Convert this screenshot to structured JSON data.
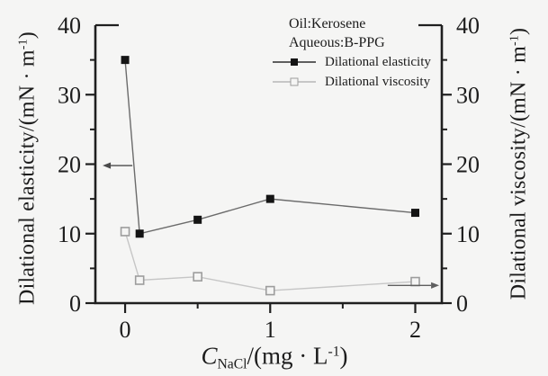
{
  "figure": {
    "background": "#f5f5f4",
    "conditions": {
      "line1": "Oil:Kerosene",
      "line2": "Aqueous:B-PPG"
    }
  },
  "labels": {
    "ylabel_left": {
      "text": "Dilational elasticity/(mN · m",
      "sup": "-1",
      "close": ")"
    },
    "ylabel_right": {
      "text": "Dilational viscosity/(mN · m",
      "sup": "-1",
      "close": ")"
    },
    "xlabel": {
      "var": "C",
      "sub": "NaCl",
      "mid": "/(mg · L",
      "sup": "-1",
      "close": ")"
    }
  },
  "chart_data": {
    "type": "line",
    "title": "",
    "x": [
      0,
      0.1,
      0.5,
      1,
      2
    ],
    "series": [
      {
        "name": "Dilational elasticity",
        "axis": "left",
        "values": [
          35,
          10,
          12,
          15,
          13
        ],
        "line_color": "#6b6b6b",
        "marker": "filled-square",
        "marker_color": "#141414"
      },
      {
        "name": "Dilational viscosity",
        "axis": "right",
        "values": [
          10.3,
          3.3,
          3.8,
          1.8,
          3.1
        ],
        "line_color": "#c6c6c6",
        "marker": "open-square",
        "marker_color": "#9d9d9d"
      }
    ],
    "xlabel": "C_NaCl/(mg · L^-1)",
    "ylabel_left": "Dilational elasticity/(mN · m^-1)",
    "ylabel_right": "Dilational viscosity/(mN · m^-1)",
    "xlim": [
      -0.205,
      2.183
    ],
    "ylim_left": [
      0,
      40
    ],
    "ylim_right": [
      0,
      40
    ],
    "xticks": [
      0,
      1,
      2
    ],
    "xticks_minor": [
      0.5,
      1.5
    ],
    "yticks": [
      0,
      10,
      20,
      30,
      40
    ],
    "yticks_minor": [
      5,
      15,
      25,
      35
    ],
    "grid": false,
    "legend_position": "top-right-inside",
    "axis_color": "#1f1f1f",
    "annotations": [
      {
        "type": "arrow",
        "direction": "left",
        "y": 19.8,
        "x_from": 0.05,
        "x_to": -0.155,
        "color": "#4a4a4a",
        "meaning": "elasticity series reads left axis"
      },
      {
        "type": "arrow",
        "direction": "right",
        "y": 2.55,
        "x_from": 1.81,
        "x_to": 2.165,
        "color": "#5f5f5f",
        "meaning": "viscosity series reads right axis"
      }
    ]
  }
}
